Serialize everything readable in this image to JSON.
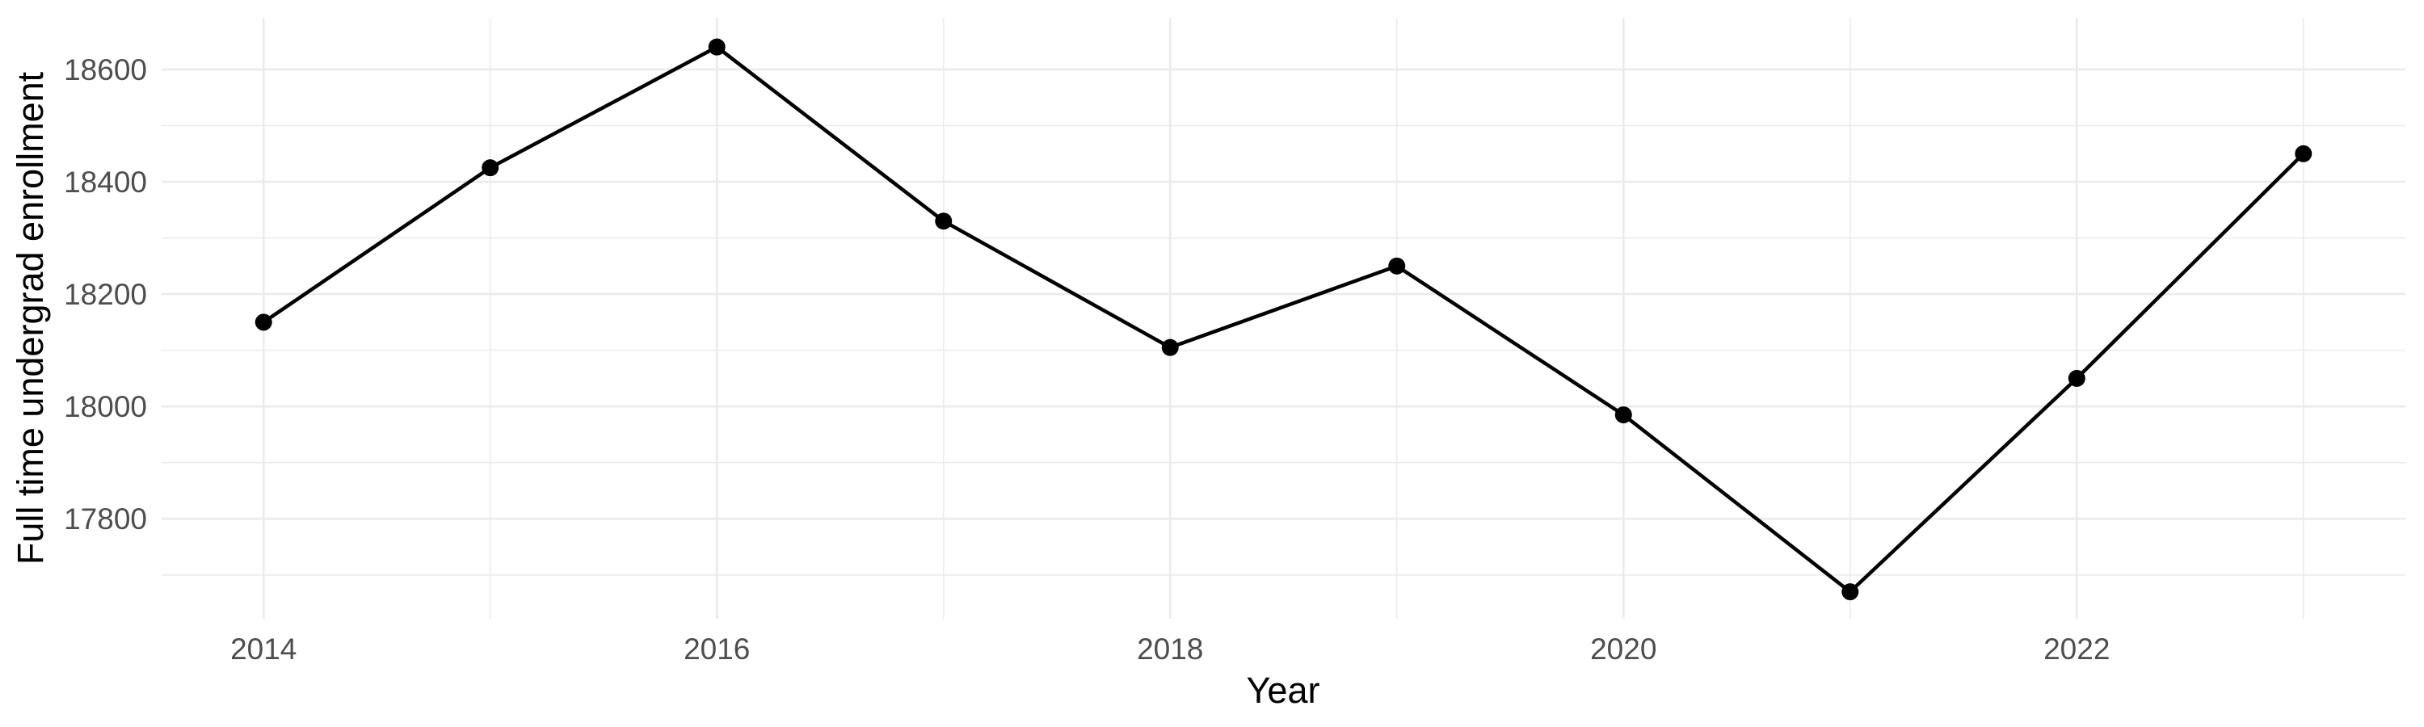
{
  "chart_data": {
    "type": "line",
    "title": "",
    "xlabel": "Year",
    "ylabel": "Full time undergrad enrollment",
    "x": [
      2014,
      2015,
      2016,
      2017,
      2018,
      2019,
      2020,
      2021,
      2022,
      2023
    ],
    "values": [
      18150,
      18425,
      18640,
      18330,
      18105,
      18250,
      17985,
      17670,
      18050,
      18450
    ],
    "series": [
      {
        "name": "Full time undergrad enrollment",
        "values": [
          18150,
          18425,
          18640,
          18330,
          18105,
          18250,
          17985,
          17670,
          18050,
          18450
        ]
      }
    ],
    "xlim": [
      2013.55,
      2023.45
    ],
    "ylim": [
      17622,
      18692
    ],
    "x_ticks_major": [
      2014,
      2016,
      2018,
      2020,
      2022
    ],
    "x_ticks_minor": [
      2015,
      2017,
      2019,
      2021,
      2023
    ],
    "y_ticks_major": [
      17800,
      18000,
      18200,
      18400,
      18600
    ],
    "y_ticks_minor": [
      17700,
      17900,
      18100,
      18300,
      18500
    ],
    "grid": true,
    "legend": false,
    "colors": {
      "line": "#000000",
      "point": "#000000",
      "grid": "#EBEBEB",
      "axis_text": "#4D4D4D",
      "axis_title": "#000000",
      "background": "#FFFFFF"
    }
  }
}
